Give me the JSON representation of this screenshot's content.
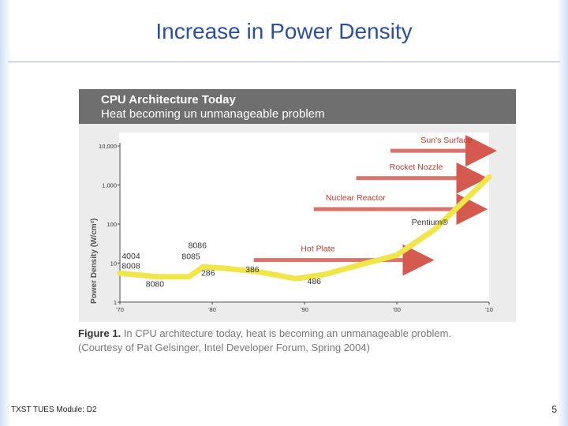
{
  "slide": {
    "title": "Increase in Power Density",
    "footer": "TXST TUES Module: D2",
    "page_number": "5"
  },
  "figure": {
    "banner_title": "CPU Architecture Today",
    "banner_subtitle": "Heat becoming un unmanageable problem",
    "caption_label": "Figure 1.",
    "caption_text": "In CPU architecture today, heat is becoming an unmanageable problem.",
    "caption_credit": "(Courtesy of Pat Gelsinger, Intel Developer Forum, Spring 2004)"
  },
  "colors": {
    "title": "#2c4f9e",
    "banner": "#6f6f6f",
    "curve": "#f0e64a",
    "arrow": "#d45a50",
    "arrow_label": "#c0392b"
  },
  "chart_data": {
    "type": "line",
    "ylabel": "Power Density (W/cm²)",
    "yscale": "log",
    "ylim": [
      1,
      10000
    ],
    "xlim": [
      1970,
      2010
    ],
    "y_ticks": [
      {
        "value": 1,
        "label": "1"
      },
      {
        "value": 10,
        "label": "10"
      },
      {
        "value": 100,
        "label": "100"
      },
      {
        "value": 1000,
        "label": "1,000"
      },
      {
        "value": 10000,
        "label": "10,000"
      }
    ],
    "x_ticks": [
      {
        "value": 1970,
        "label": "'70"
      },
      {
        "value": 1980,
        "label": "'80"
      },
      {
        "value": 1990,
        "label": "'90"
      },
      {
        "value": 2000,
        "label": "'00"
      },
      {
        "value": 2010,
        "label": "'10"
      }
    ],
    "series": [
      {
        "x": [
          1970,
          1974,
          1977.5,
          1979,
          1981,
          1985,
          1989,
          1992,
          1996,
          2000,
          2004,
          2010
        ],
        "y": [
          5.5,
          4.5,
          4.5,
          8,
          7.5,
          6,
          4,
          5,
          9,
          16,
          70,
          1600
        ]
      }
    ],
    "point_labels": [
      {
        "text": "4004",
        "x": 1970.2,
        "y": 13
      },
      {
        "text": "8008",
        "x": 1970.2,
        "y": 7.3
      },
      {
        "text": "8080",
        "x": 1972.8,
        "y": 2.5
      },
      {
        "text": "8086",
        "x": 1977.4,
        "y": 24
      },
      {
        "text": "8085",
        "x": 1976.7,
        "y": 12.5
      },
      {
        "text": "286",
        "x": 1978.8,
        "y": 4.8
      },
      {
        "text": "386",
        "x": 1983.6,
        "y": 5.8
      },
      {
        "text": "486",
        "x": 1990.3,
        "y": 2.9
      },
      {
        "text": "Pentium®",
        "x": 2001.6,
        "y": 95
      }
    ],
    "reference_lines": [
      {
        "label": "Hot Plate",
        "x_start": 1984.5,
        "x_end": 2003.2,
        "y": 12,
        "label_x": 1989.6,
        "label_y": 20
      },
      {
        "label": "Nuclear Reactor",
        "x_start": 1991,
        "x_end": 2009,
        "y": 240,
        "label_x": 1992.3,
        "label_y": 400
      },
      {
        "label": "Rocket Nozzle",
        "x_start": 1995.6,
        "x_end": 2009,
        "y": 1500,
        "label_x": 1999.2,
        "label_y": 2500
      },
      {
        "label": "Sun's Surface",
        "x_start": 1999.3,
        "x_end": 2010,
        "y": 7500,
        "label_x": 2002.6,
        "label_y": 12000
      }
    ]
  }
}
